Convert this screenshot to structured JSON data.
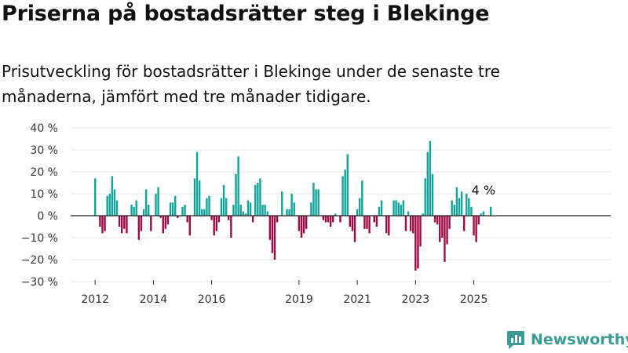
{
  "title": "Priserna på bostadsrätter steg i Blekinge",
  "subtitle": "Prisutveckling för bostadsrätter i Blekinge under de senaste tre månaderna, jämfört med tre månader tidigare.",
  "brand": {
    "name": "Newsworthy",
    "icon": "newsworthy-logo-icon"
  },
  "chart_data": {
    "type": "bar",
    "x_start": "2012-01",
    "x_end": "2025-06",
    "y_ticks": [
      "40 %",
      "30 %",
      "20 %",
      "10 %",
      "0 %",
      "−10 %",
      "−20 %",
      "−30 %"
    ],
    "y_tick_values": [
      40,
      30,
      20,
      10,
      0,
      -10,
      -20,
      -30
    ],
    "ylim": [
      -30,
      40
    ],
    "x_tick_labels": [
      {
        "label": "2012",
        "date": "2012-01"
      },
      {
        "label": "2014",
        "date": "2014-01"
      },
      {
        "label": "2016",
        "date": "2016-01"
      },
      {
        "label": "2019",
        "date": "2019-01"
      },
      {
        "label": "2021",
        "date": "2021-01"
      },
      {
        "label": "2023",
        "date": "2023-01"
      },
      {
        "label": "2025",
        "date": "2025-01"
      }
    ],
    "grid": true,
    "colors": {
      "positive": "#12a39b",
      "negative": "#9d0a45",
      "baseline": "#222222",
      "grid": "#e3e3e3"
    },
    "annotation": {
      "text": "4 %",
      "date": "2025-05"
    },
    "values": [
      17,
      0,
      -5,
      -8,
      -7,
      9,
      10,
      18,
      12,
      7,
      -5,
      -8,
      -6,
      -8,
      0,
      5,
      4,
      7,
      -11,
      -7,
      3,
      12,
      5,
      -7,
      0,
      10,
      13,
      -1,
      -8,
      -6,
      -4,
      6,
      6,
      9,
      -1,
      0,
      4,
      5,
      -3,
      -9,
      0,
      17,
      29,
      16,
      3,
      3,
      8,
      9,
      -2,
      -9,
      -7,
      -3,
      8,
      14,
      8,
      -2,
      -10,
      5,
      19,
      27,
      5,
      2,
      1,
      7,
      6,
      -3,
      14,
      15,
      17,
      5,
      5,
      2,
      -11,
      -17,
      -20,
      -3,
      0,
      11,
      0,
      3,
      3,
      10,
      6,
      0,
      -7,
      -10,
      -8,
      -6,
      0,
      6,
      15,
      12,
      12,
      0,
      -2,
      -3,
      -3,
      -5,
      -3,
      1,
      0,
      -3,
      18,
      21,
      28,
      -5,
      -7,
      -12,
      3,
      8,
      16,
      -6,
      -6,
      -8,
      0,
      -3,
      -5,
      4,
      7,
      0,
      -8,
      -9,
      0,
      7,
      7,
      6,
      5,
      7,
      -7,
      2,
      -7,
      -8,
      -25,
      -24,
      -14,
      1,
      17,
      29,
      34,
      19,
      -3,
      -4,
      -12,
      -10,
      -21,
      -13,
      -6,
      7,
      5,
      13,
      8,
      11,
      -7,
      10,
      8,
      4,
      -9,
      -12,
      -4,
      1,
      2,
      0,
      0,
      4
    ]
  }
}
